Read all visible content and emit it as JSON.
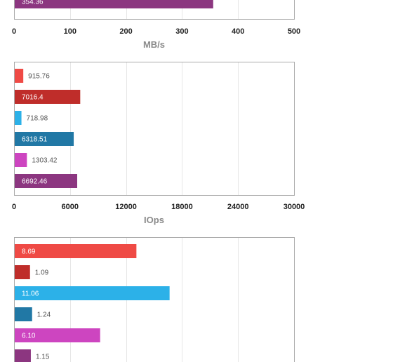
{
  "colors": {
    "red": "#ef4a45",
    "dark_red": "#bf2d2a",
    "light_blue": "#2cb1e8",
    "dark_blue": "#2178a5",
    "magenta": "#cd45c0",
    "purple": "#8c3680",
    "grid": "#e6e6e6",
    "frame": "#aaaaaa",
    "axis_title": "#8a8a8a",
    "tick_text": "#222222",
    "value_text_outside": "#555555"
  },
  "chart_data": [
    {
      "type": "bar",
      "orientation": "horizontal",
      "xlabel": "MB/s",
      "xlim": [
        0,
        500
      ],
      "xticks": [
        "0",
        "100",
        "200",
        "300",
        "400",
        "500"
      ],
      "grid": true,
      "series": [
        {
          "value": 354.36,
          "label": "354.36",
          "color": "purple"
        }
      ]
    },
    {
      "type": "bar",
      "orientation": "horizontal",
      "xlabel": "IOps",
      "xlim": [
        0,
        30000
      ],
      "xticks": [
        "0",
        "6000",
        "12000",
        "18000",
        "24000",
        "30000"
      ],
      "grid": true,
      "series": [
        {
          "value": 915.76,
          "label": "915.76",
          "color": "red"
        },
        {
          "value": 7016.4,
          "label": "7016.4",
          "color": "dark_red"
        },
        {
          "value": 718.98,
          "label": "718.98",
          "color": "light_blue"
        },
        {
          "value": 6318.51,
          "label": "6318.51",
          "color": "dark_blue"
        },
        {
          "value": 1303.42,
          "label": "1303.42",
          "color": "magenta"
        },
        {
          "value": 6692.46,
          "label": "6692.46",
          "color": "purple"
        }
      ]
    },
    {
      "type": "bar",
      "orientation": "horizontal",
      "xlabel": "",
      "xlim": [
        0,
        20
      ],
      "xticks": [],
      "grid": true,
      "series": [
        {
          "value": 8.69,
          "label": "8.69",
          "color": "red"
        },
        {
          "value": 1.09,
          "label": "1.09",
          "color": "dark_red"
        },
        {
          "value": 11.06,
          "label": "11.06",
          "color": "light_blue"
        },
        {
          "value": 1.24,
          "label": "1.24",
          "color": "dark_blue"
        },
        {
          "value": 6.1,
          "label": "6.10",
          "color": "magenta"
        },
        {
          "value": 1.15,
          "label": "1.15",
          "color": "purple"
        }
      ]
    }
  ]
}
